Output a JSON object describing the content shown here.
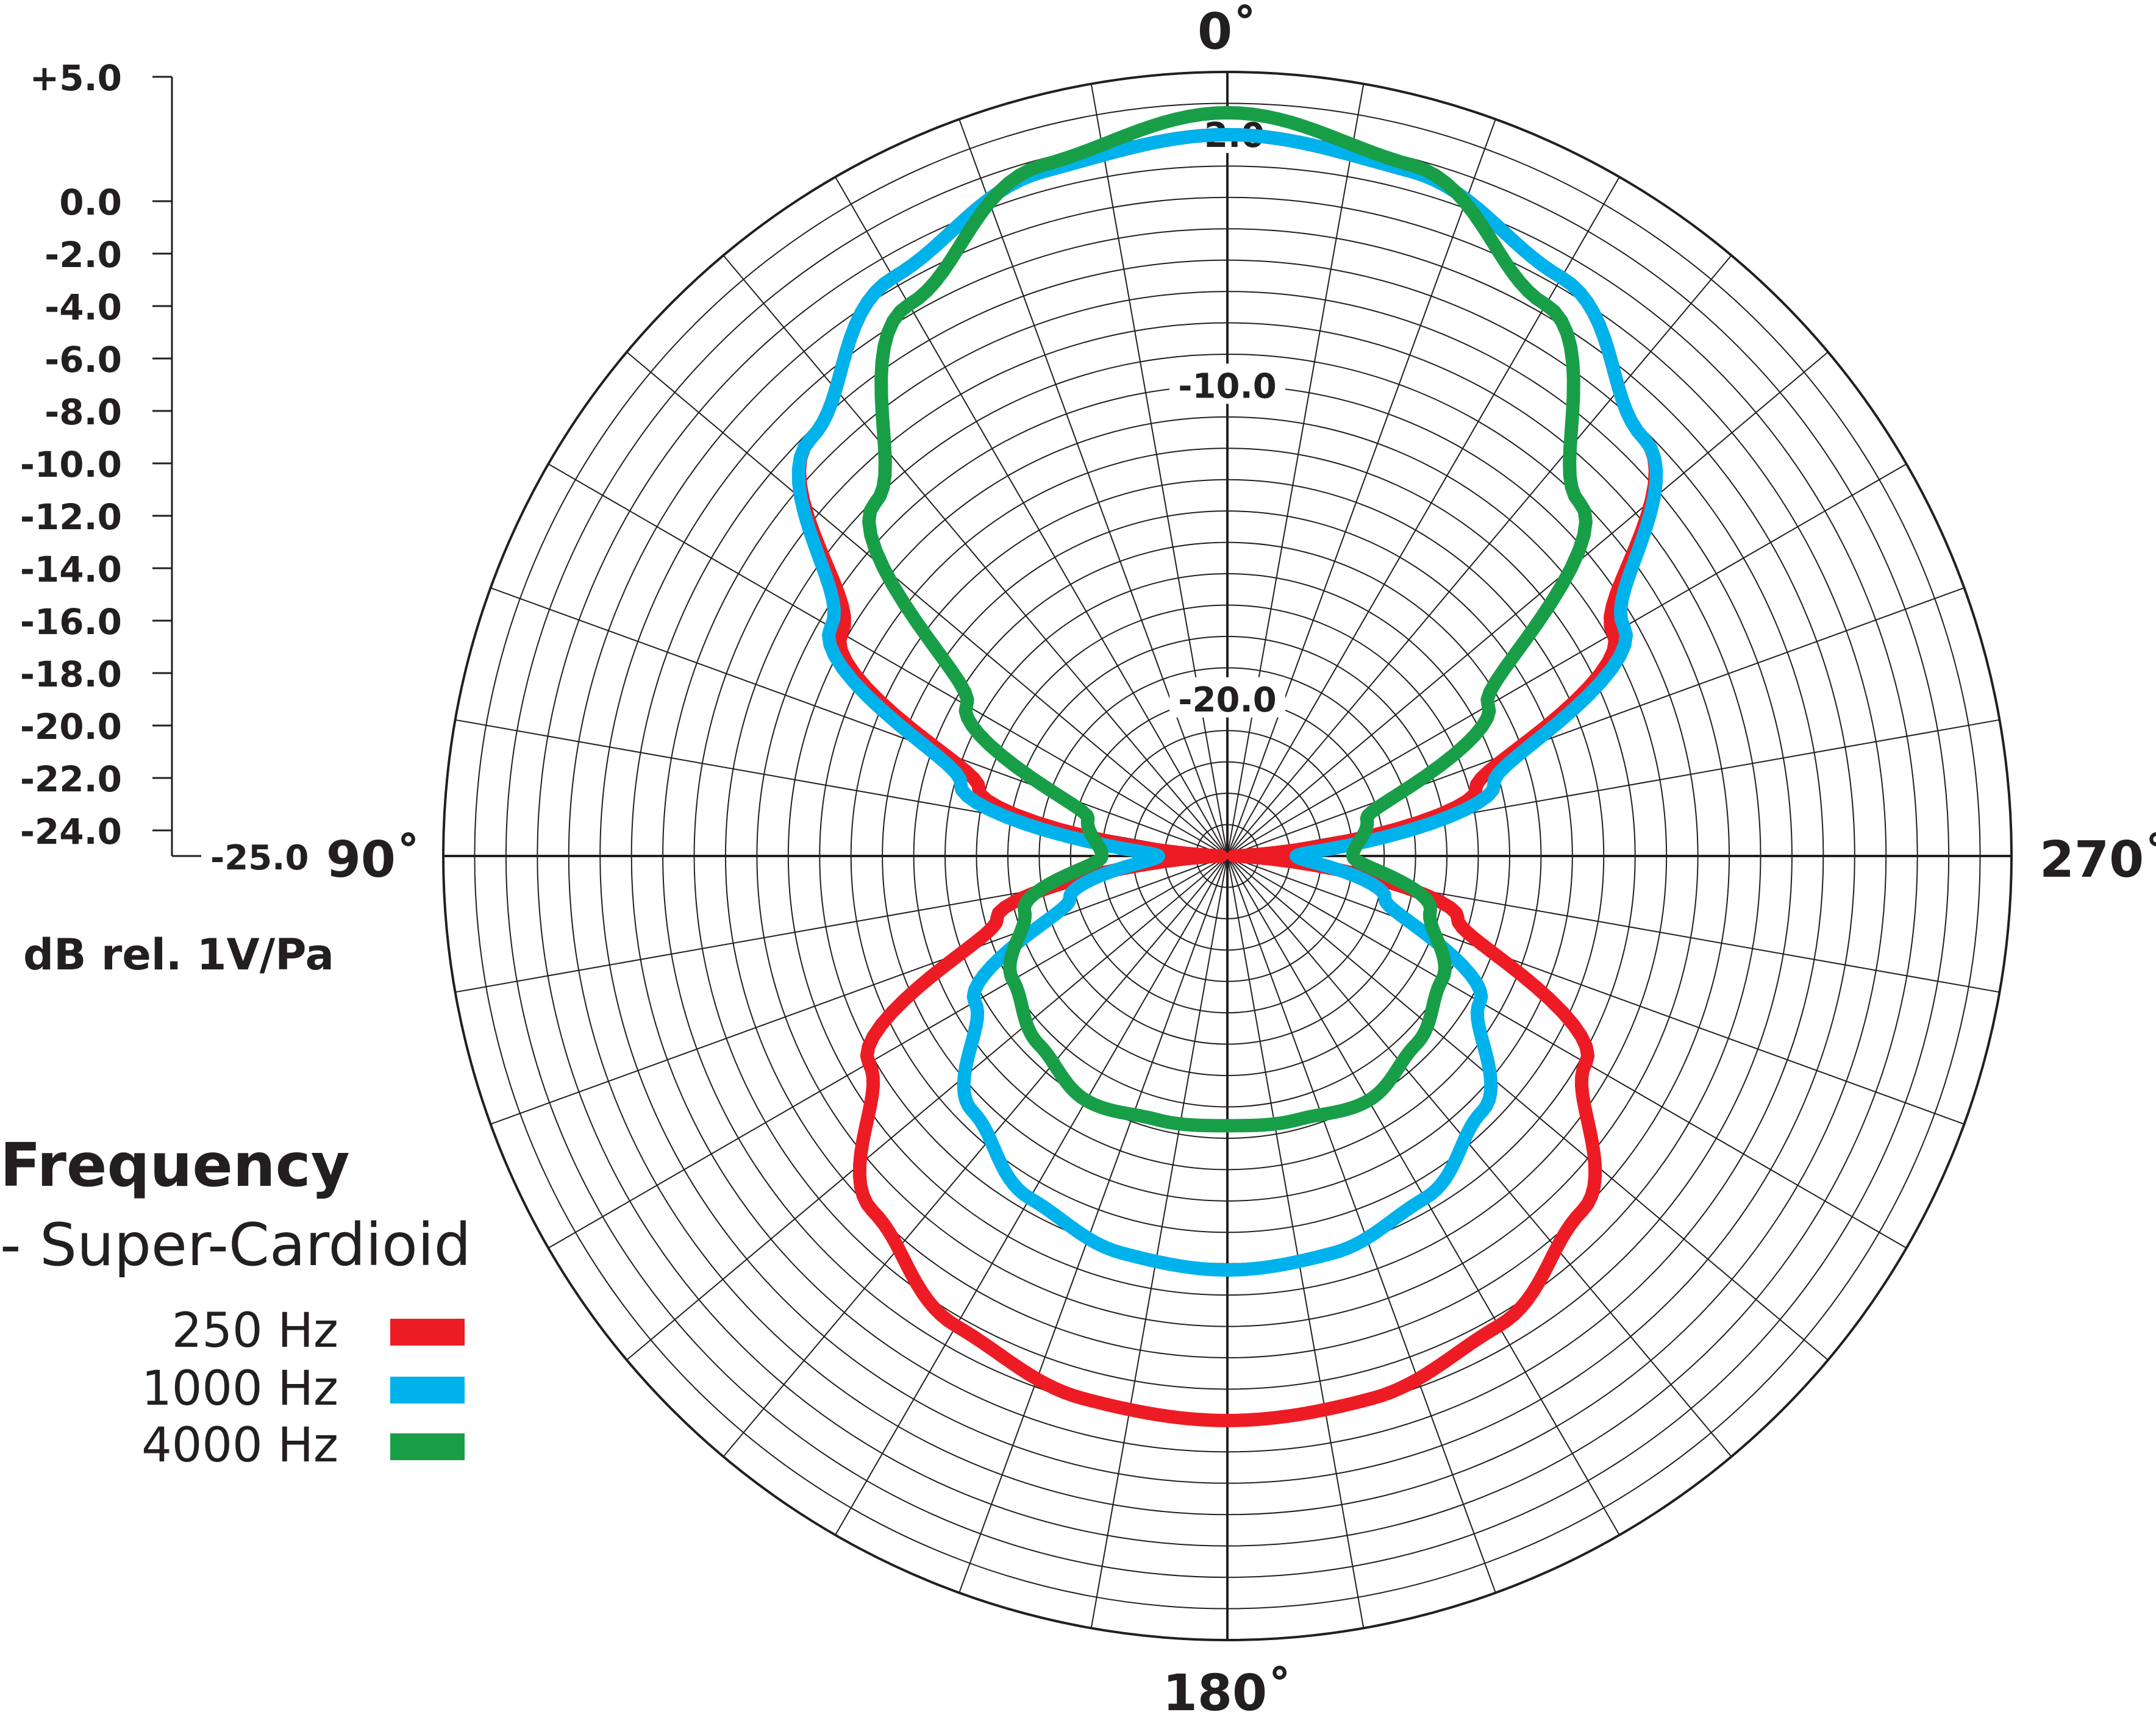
{
  "chart_data": {
    "type": "polar",
    "title": "Frequency",
    "subtitle": "- Super-Cardioid",
    "ylabel": "dB rel. 1V/Pa",
    "rlim": [
      -25,
      0
    ],
    "scale_ticks": [
      "+5.0",
      "0.0",
      "-2.0",
      "-4.0",
      "-6.0",
      "-8.0",
      "-10.0",
      "-12.0",
      "-14.0",
      "-16.0",
      "-18.0",
      "-20.0",
      "-22.0",
      "-24.0",
      "-25.0"
    ],
    "ring_labels": [
      "-2.0",
      "-10.0",
      "-20.0"
    ],
    "angle_labels": [
      "0˚",
      "90˚",
      "180˚",
      "270˚"
    ],
    "angles_deg": [
      0,
      15,
      30,
      45,
      60,
      75,
      90,
      105,
      120,
      135,
      150,
      165,
      180
    ],
    "series": [
      {
        "name": "250 Hz",
        "color": "#ed1c24",
        "values": [
          -2.0,
          -2.4,
          -3.7,
          -6.2,
          -10.8,
          -16.8,
          -24.8,
          -17.4,
          -11.8,
          -9.0,
          -7.7,
          -7.1,
          -7.0
        ]
      },
      {
        "name": "1000 Hz",
        "color": "#00b2ec",
        "values": [
          -2.0,
          -2.4,
          -3.7,
          -6.2,
          -10.4,
          -16.2,
          -22.8,
          -19.8,
          -15.7,
          -13.5,
          -12.4,
          -11.9,
          -11.8
        ]
      },
      {
        "name": "4000 Hz",
        "color": "#199e48",
        "values": [
          -1.3,
          -2.2,
          -4.7,
          -9.1,
          -15.4,
          -20.4,
          -21.0,
          -18.3,
          -17.1,
          -16.5,
          -16.0,
          -16.3,
          -16.4
        ]
      }
    ],
    "grid": true,
    "legend_position": "bottom-left"
  }
}
